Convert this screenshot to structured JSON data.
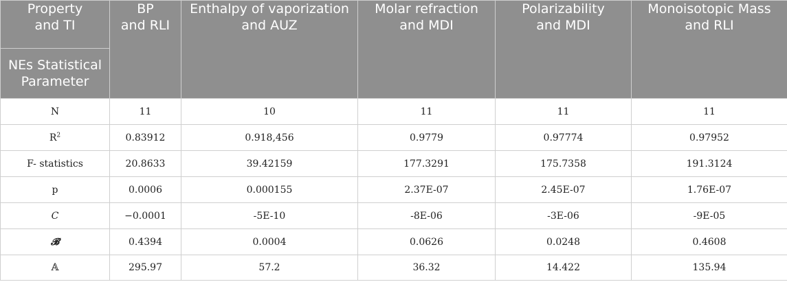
{
  "header": {
    "corner_top": [
      "Property",
      "and TI"
    ],
    "corner_bottom": [
      "NEs Statistical",
      "Parameter"
    ],
    "columns": [
      [
        "BP",
        "and RLI"
      ],
      [
        "Enthalpy of vaporization",
        "and AUZ"
      ],
      [
        "Molar refraction",
        "and MDI"
      ],
      [
        "Polarizability",
        "and MDI"
      ],
      [
        "Monoisotopic Mass",
        "and RLI"
      ]
    ]
  },
  "rows": [
    {
      "param": "N",
      "param_sup": "",
      "values": [
        "11",
        "10",
        "11",
        "11",
        "11"
      ]
    },
    {
      "param": "R",
      "param_sup": "2",
      "values": [
        "0.83912",
        "0.918,456",
        "0.9779",
        "0.97774",
        "0.97952"
      ]
    },
    {
      "param": "F- statistics",
      "param_sup": "",
      "values": [
        "20.8633",
        "39.42159",
        "177.3291",
        "175.7358",
        "191.3124"
      ]
    },
    {
      "param": "p",
      "param_sup": "",
      "values": [
        "0.0006",
        "0.000155",
        "2.37E-07",
        "2.45E-07",
        "1.76E-07"
      ]
    },
    {
      "param": "C",
      "param_sup": "",
      "values": [
        "−0.0001",
        "-5E-10",
        "-8E-06",
        "-3E-06",
        "-9E-05"
      ]
    },
    {
      "param": "𝓑",
      "param_sup": "",
      "values": [
        "0.4394",
        "0.0004",
        "0.0626",
        "0.0248",
        "0.4608"
      ]
    },
    {
      "param": "𝔸",
      "param_sup": "",
      "values": [
        "295.97",
        "57.2",
        "36.32",
        "14.422",
        "135.94"
      ]
    }
  ]
}
